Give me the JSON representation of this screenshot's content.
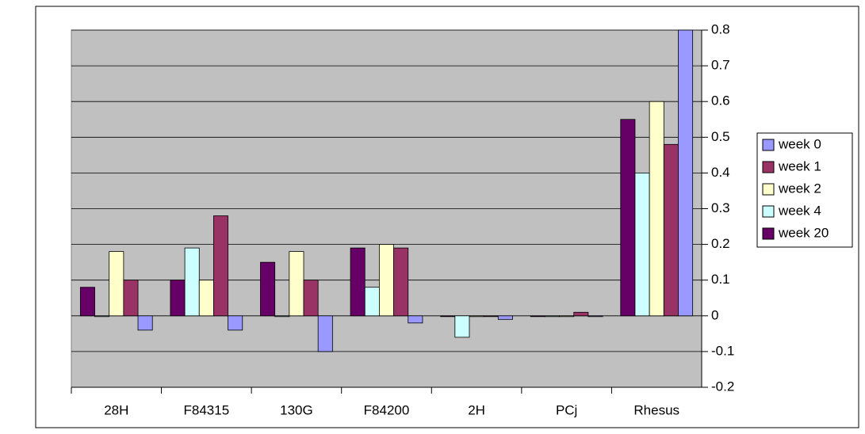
{
  "chart_data": {
    "type": "bar",
    "categories": [
      "28H",
      "F84315",
      "130G",
      "F84200",
      "2H",
      "PCj",
      "Rhesus"
    ],
    "series": [
      {
        "name": "week 0",
        "color": "#9999ff",
        "values": [
          -0.04,
          -0.04,
          -0.1,
          -0.02,
          -0.01,
          0,
          0.8
        ]
      },
      {
        "name": "week 1",
        "color": "#993366",
        "values": [
          0.1,
          0.28,
          0.1,
          0.19,
          0,
          0.01,
          0.48
        ]
      },
      {
        "name": "week 2",
        "color": "#ffffcc",
        "values": [
          0.18,
          0.1,
          0.18,
          0.2,
          0,
          0,
          0.6
        ]
      },
      {
        "name": "week 4",
        "color": "#ccffff",
        "values": [
          0,
          0.19,
          0,
          0.08,
          -0.06,
          0,
          0.4
        ]
      },
      {
        "name": "week 20",
        "color": "#660066",
        "values": [
          0.08,
          0.1,
          0.15,
          0.19,
          0,
          0,
          0.55
        ]
      }
    ],
    "ylim": [
      -0.2,
      0.8
    ],
    "yticks": [
      -0.2,
      -0.1,
      0,
      0.1,
      0.2,
      0.3,
      0.4,
      0.5,
      0.6,
      0.7,
      0.8
    ],
    "grid": true
  }
}
